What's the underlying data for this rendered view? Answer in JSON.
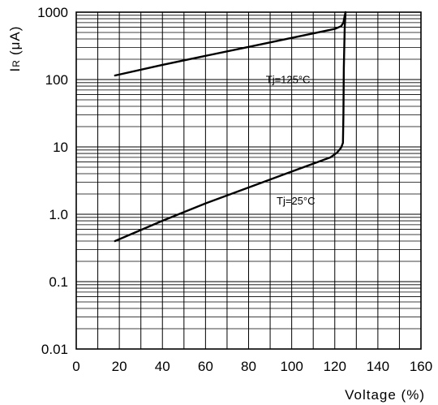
{
  "chart_data": {
    "type": "line",
    "title": "",
    "xlabel": "Voltage (%)",
    "ylabel": "IR (μA)",
    "ylabel_main": "I",
    "ylabel_sub": "R",
    "ylabel_unit": "(μA)",
    "xlim": [
      0,
      160
    ],
    "ylim": [
      0.01,
      1000
    ],
    "yscale": "log",
    "grid": true,
    "x_ticks": [
      0,
      20,
      40,
      60,
      80,
      100,
      120,
      140,
      160
    ],
    "x_tick_labels": [
      "0",
      "20",
      "40",
      "60",
      "80",
      "100",
      "120",
      "140",
      "160"
    ],
    "y_ticks": [
      0.01,
      0.1,
      1,
      10,
      100,
      1000
    ],
    "y_tick_labels": [
      "0.01",
      "0.1",
      "1.0",
      "10",
      "100",
      "1000"
    ],
    "series": [
      {
        "annotation": "Tj=125°C",
        "x": [
          18,
          40,
          60,
          80,
          100,
          120,
          123,
          124,
          124.5,
          125
        ],
        "y": [
          115,
          165,
          225,
          305,
          415,
          565,
          620,
          700,
          850,
          1000
        ]
      },
      {
        "annotation": "Tj=25°C",
        "x": [
          18,
          40,
          60,
          80,
          100,
          118,
          121,
          123,
          123.8,
          124,
          124.2,
          124.6,
          125
        ],
        "y": [
          0.4,
          0.8,
          1.45,
          2.5,
          4.3,
          7.0,
          8.2,
          9.8,
          11.5,
          30,
          150,
          600,
          1000
        ]
      }
    ]
  }
}
